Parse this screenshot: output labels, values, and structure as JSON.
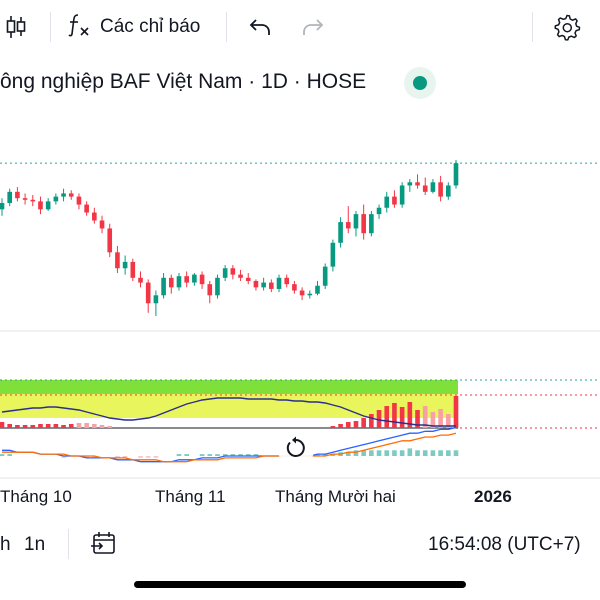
{
  "toolbar": {
    "candles_icon": "candlestick-icon",
    "indicators_icon": "function-icon",
    "indicators_label": "Các chỉ báo",
    "undo_icon": "undo-icon",
    "redo_icon": "redo-icon",
    "settings_icon": "gear-icon"
  },
  "symbol": {
    "title": "ông nghiệp BAF Việt Nam · 1D · HOSE",
    "status_color": "#089981"
  },
  "colors": {
    "up": "#089981",
    "down": "#f23645",
    "grid_dotted_green": "#26a69a",
    "grid_dotted_red": "#f23645"
  },
  "chart_data": {
    "type": "candlestick",
    "title": "",
    "xlabel": "",
    "ylabel": "",
    "x_tick_labels": [
      "Tháng 10",
      "Tháng 11",
      "Tháng Mười hai",
      "2026"
    ],
    "candles": [
      {
        "o": 53,
        "h": 60,
        "l": 49,
        "c": 57
      },
      {
        "o": 57,
        "h": 66,
        "l": 55,
        "c": 64
      },
      {
        "o": 64,
        "h": 67,
        "l": 58,
        "c": 60
      },
      {
        "o": 60,
        "h": 63,
        "l": 56,
        "c": 59
      },
      {
        "o": 59,
        "h": 62,
        "l": 55,
        "c": 58
      },
      {
        "o": 58,
        "h": 61,
        "l": 50,
        "c": 53
      },
      {
        "o": 53,
        "h": 60,
        "l": 52,
        "c": 58
      },
      {
        "o": 58,
        "h": 63,
        "l": 56,
        "c": 61
      },
      {
        "o": 61,
        "h": 66,
        "l": 58,
        "c": 63
      },
      {
        "o": 63,
        "h": 65,
        "l": 59,
        "c": 61
      },
      {
        "o": 61,
        "h": 63,
        "l": 53,
        "c": 56
      },
      {
        "o": 56,
        "h": 58,
        "l": 49,
        "c": 51
      },
      {
        "o": 51,
        "h": 54,
        "l": 44,
        "c": 46
      },
      {
        "o": 46,
        "h": 49,
        "l": 38,
        "c": 41
      },
      {
        "o": 41,
        "h": 44,
        "l": 23,
        "c": 26
      },
      {
        "o": 26,
        "h": 30,
        "l": 13,
        "c": 16
      },
      {
        "o": 16,
        "h": 24,
        "l": 12,
        "c": 20
      },
      {
        "o": 20,
        "h": 22,
        "l": 8,
        "c": 10
      },
      {
        "o": 10,
        "h": 14,
        "l": 4,
        "c": 7
      },
      {
        "o": 7,
        "h": 9,
        "l": -12,
        "c": -6
      },
      {
        "o": -6,
        "h": 2,
        "l": -14,
        "c": -1
      },
      {
        "o": -1,
        "h": 13,
        "l": -3,
        "c": 10
      },
      {
        "o": 10,
        "h": 12,
        "l": 0,
        "c": 4
      },
      {
        "o": 4,
        "h": 13,
        "l": 2,
        "c": 11
      },
      {
        "o": 11,
        "h": 14,
        "l": 4,
        "c": 7
      },
      {
        "o": 7,
        "h": 13,
        "l": 5,
        "c": 12
      },
      {
        "o": 12,
        "h": 14,
        "l": 3,
        "c": 6
      },
      {
        "o": 6,
        "h": 8,
        "l": -6,
        "c": -1
      },
      {
        "o": -1,
        "h": 12,
        "l": -3,
        "c": 10
      },
      {
        "o": 10,
        "h": 18,
        "l": 8,
        "c": 16
      },
      {
        "o": 16,
        "h": 18,
        "l": 9,
        "c": 12
      },
      {
        "o": 12,
        "h": 15,
        "l": 8,
        "c": 10
      },
      {
        "o": 10,
        "h": 13,
        "l": 6,
        "c": 8
      },
      {
        "o": 8,
        "h": 9,
        "l": 2,
        "c": 4
      },
      {
        "o": 4,
        "h": 10,
        "l": 2,
        "c": 7
      },
      {
        "o": 7,
        "h": 9,
        "l": 1,
        "c": 3
      },
      {
        "o": 3,
        "h": 12,
        "l": 1,
        "c": 10
      },
      {
        "o": 10,
        "h": 12,
        "l": 4,
        "c": 6
      },
      {
        "o": 6,
        "h": 8,
        "l": 0,
        "c": 2
      },
      {
        "o": 2,
        "h": 4,
        "l": -4,
        "c": -1
      },
      {
        "o": -1,
        "h": 2,
        "l": -3,
        "c": 0
      },
      {
        "o": 0,
        "h": 8,
        "l": -1,
        "c": 5
      },
      {
        "o": 5,
        "h": 19,
        "l": 3,
        "c": 17
      },
      {
        "o": 17,
        "h": 34,
        "l": 14,
        "c": 32
      },
      {
        "o": 32,
        "h": 48,
        "l": 29,
        "c": 45
      },
      {
        "o": 45,
        "h": 55,
        "l": 38,
        "c": 41
      },
      {
        "o": 41,
        "h": 52,
        "l": 36,
        "c": 50
      },
      {
        "o": 50,
        "h": 56,
        "l": 34,
        "c": 38
      },
      {
        "o": 38,
        "h": 52,
        "l": 36,
        "c": 50
      },
      {
        "o": 50,
        "h": 56,
        "l": 47,
        "c": 54
      },
      {
        "o": 54,
        "h": 64,
        "l": 51,
        "c": 61
      },
      {
        "o": 61,
        "h": 65,
        "l": 54,
        "c": 56
      },
      {
        "o": 56,
        "h": 70,
        "l": 54,
        "c": 68
      },
      {
        "o": 68,
        "h": 72,
        "l": 64,
        "c": 70
      },
      {
        "o": 70,
        "h": 75,
        "l": 66,
        "c": 68
      },
      {
        "o": 68,
        "h": 73,
        "l": 62,
        "c": 64
      },
      {
        "o": 64,
        "h": 72,
        "l": 63,
        "c": 70
      },
      {
        "o": 70,
        "h": 74,
        "l": 58,
        "c": 61
      },
      {
        "o": 61,
        "h": 70,
        "l": 59,
        "c": 68
      },
      {
        "o": 68,
        "h": 84,
        "l": 66,
        "c": 82
      }
    ],
    "osc_signal": [
      {
        "v": 6,
        "c": "#f23645"
      },
      {
        "v": 4,
        "c": "#f23645"
      },
      {
        "v": 3,
        "c": "#f23645"
      },
      {
        "v": 3,
        "c": "#f23645"
      },
      {
        "v": 3,
        "c": "#f23645"
      },
      {
        "v": 4,
        "c": "#f23645"
      },
      {
        "v": 4,
        "c": "#f23645"
      },
      {
        "v": 4,
        "c": "#f23645"
      },
      {
        "v": 3,
        "c": "#f23645"
      },
      {
        "v": 4,
        "c": "#f23645"
      },
      {
        "v": 5,
        "c": "#f7a1a6"
      },
      {
        "v": 5,
        "c": "#f7a1a6"
      },
      {
        "v": 4,
        "c": "#f7a1a6"
      },
      {
        "v": 3,
        "c": "#f7a1a6"
      },
      {
        "v": 2,
        "c": "#f7a1a6"
      },
      {
        "v": 0,
        "c": ""
      },
      {
        "v": 0,
        "c": ""
      },
      {
        "v": 0,
        "c": ""
      },
      {
        "v": 0,
        "c": ""
      },
      {
        "v": 0,
        "c": ""
      },
      {
        "v": 0,
        "c": ""
      },
      {
        "v": 0,
        "c": ""
      },
      {
        "v": 0,
        "c": ""
      },
      {
        "v": 0,
        "c": ""
      },
      {
        "v": 0,
        "c": ""
      },
      {
        "v": 0,
        "c": ""
      },
      {
        "v": 0,
        "c": ""
      },
      {
        "v": 0,
        "c": ""
      },
      {
        "v": 0,
        "c": ""
      },
      {
        "v": 0,
        "c": ""
      },
      {
        "v": 0,
        "c": ""
      },
      {
        "v": 0,
        "c": ""
      },
      {
        "v": 0,
        "c": ""
      },
      {
        "v": 0,
        "c": ""
      },
      {
        "v": 0,
        "c": ""
      },
      {
        "v": 0,
        "c": ""
      },
      {
        "v": 0,
        "c": ""
      },
      {
        "v": 0,
        "c": ""
      },
      {
        "v": 0,
        "c": ""
      },
      {
        "v": 0,
        "c": ""
      },
      {
        "v": 0,
        "c": ""
      },
      {
        "v": 0,
        "c": ""
      },
      {
        "v": 0,
        "c": ""
      },
      {
        "v": 2,
        "c": "#f23645"
      },
      {
        "v": 4,
        "c": "#f23645"
      },
      {
        "v": 6,
        "c": "#f23645"
      },
      {
        "v": 7,
        "c": "#f23645"
      },
      {
        "v": 10,
        "c": "#f23645"
      },
      {
        "v": 14,
        "c": "#f23645"
      },
      {
        "v": 18,
        "c": "#f23645"
      },
      {
        "v": 22,
        "c": "#f23645"
      },
      {
        "v": 25,
        "c": "#f23645"
      },
      {
        "v": 21,
        "c": "#f23645"
      },
      {
        "v": 26,
        "c": "#f23645"
      },
      {
        "v": 18,
        "c": "#f23645"
      },
      {
        "v": 22,
        "c": "#f7a1a6"
      },
      {
        "v": 16,
        "c": "#f7a1a6"
      },
      {
        "v": 19,
        "c": "#f7a1a6"
      },
      {
        "v": 14,
        "c": "#f7a1a6"
      },
      {
        "v": 32,
        "c": "#f23645"
      }
    ],
    "osc_line": [
      16,
      17,
      18,
      19,
      20,
      20,
      21,
      21,
      20,
      19,
      18,
      16,
      14,
      12,
      10,
      9,
      8,
      8,
      9,
      10,
      12,
      15,
      18,
      21,
      24,
      26,
      28,
      29,
      30,
      30,
      30,
      30,
      29,
      29,
      29,
      29,
      28,
      28,
      27,
      27,
      26,
      26,
      25,
      23,
      21,
      18,
      15,
      12,
      10,
      8,
      7,
      6,
      5,
      4,
      3,
      3,
      2,
      2,
      2,
      2
    ],
    "macd": [
      3,
      3,
      2,
      2,
      2,
      1,
      1,
      1,
      0,
      0,
      0,
      -1,
      -1,
      -1,
      -1,
      -2,
      -2,
      -2,
      -3,
      -3,
      -3,
      -3,
      -3,
      -2,
      -2,
      -2,
      -1,
      -1,
      -1,
      0,
      0,
      0,
      0,
      0,
      0,
      0,
      0,
      0,
      0,
      0,
      0,
      1,
      1,
      2,
      3,
      4,
      5,
      6,
      7,
      8,
      9,
      10,
      11,
      12,
      12,
      13,
      13,
      14,
      14,
      15
    ],
    "macd_signal": [
      2,
      2,
      2,
      2,
      2,
      1,
      1,
      1,
      1,
      0,
      0,
      0,
      0,
      -1,
      -1,
      -1,
      -1,
      -2,
      -2,
      -2,
      -2,
      -3,
      -3,
      -3,
      -3,
      -2,
      -2,
      -2,
      -2,
      -1,
      -1,
      -1,
      -1,
      -1,
      0,
      0,
      0,
      0,
      0,
      0,
      0,
      0,
      0,
      1,
      1,
      2,
      2,
      3,
      4,
      5,
      6,
      7,
      8,
      8,
      9,
      10,
      10,
      11,
      11,
      12
    ],
    "macd_hist": [
      1,
      1,
      0,
      0,
      0,
      0,
      0,
      0,
      -1,
      0,
      0,
      -1,
      -1,
      0,
      0,
      -1,
      -1,
      0,
      -1,
      -1,
      -1,
      0,
      0,
      1,
      1,
      0,
      1,
      1,
      1,
      1,
      1,
      1,
      1,
      1,
      0,
      0,
      0,
      0,
      0,
      0,
      0,
      1,
      1,
      1,
      2,
      2,
      3,
      3,
      3,
      3,
      3,
      3,
      3,
      4,
      3,
      3,
      3,
      3,
      3,
      3
    ]
  },
  "x_axis": {
    "label_oct": "Tháng 10",
    "label_nov": "Tháng 11",
    "label_dec": "Tháng Mười hai",
    "label_2026": "2026"
  },
  "bottom_bar": {
    "interval_1": "h",
    "interval_2": "1n",
    "compare_icon": "calendar-range-icon",
    "clock": "16:54:08 (UTC+7)"
  },
  "overlay": {
    "reset_icon": "reset-icon"
  }
}
